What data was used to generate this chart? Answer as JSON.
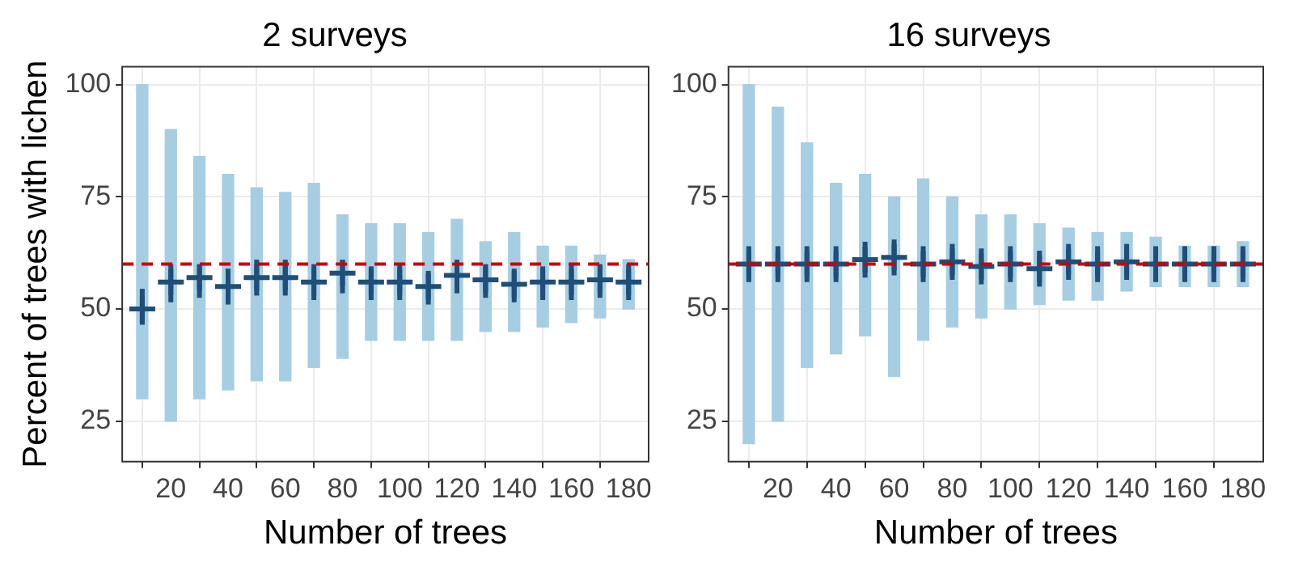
{
  "chart_data": [
    {
      "type": "scatter",
      "title": "2 surveys",
      "xlabel": "Number of trees",
      "ylabel": "Percent of trees with lichen",
      "x": [
        10,
        20,
        30,
        40,
        50,
        60,
        70,
        80,
        90,
        100,
        110,
        120,
        130,
        140,
        150,
        160,
        170,
        180
      ],
      "xlim": [
        3,
        187
      ],
      "xticks": [
        20,
        40,
        60,
        80,
        100,
        120,
        140,
        160,
        180
      ],
      "ylim": [
        16,
        104
      ],
      "yticks": [
        25,
        50,
        75,
        100
      ],
      "grid": true,
      "ref_lines": [
        {
          "axis": "y",
          "value": 60,
          "color": "#cc0000",
          "line_style": "dashed"
        }
      ],
      "series": [
        {
          "type": "bar",
          "color": "#a6cee3",
          "base": [
            30,
            25,
            30,
            32,
            34,
            34,
            37,
            39,
            43,
            43,
            43,
            43,
            45,
            45,
            46,
            47,
            48,
            50
          ],
          "values": [
            70,
            65,
            54,
            48,
            43,
            42,
            41,
            32,
            26,
            26,
            24,
            27,
            20,
            22,
            18,
            17,
            14,
            11
          ]
        },
        {
          "color": "#1f4e79",
          "marker": "cross",
          "values": [
            50,
            56,
            57,
            55,
            57,
            57,
            56,
            58,
            56,
            56,
            55,
            57.5,
            56.5,
            55.5,
            56,
            56,
            56.5,
            56
          ],
          "errors": [
            [
              46.5,
              54.5
            ],
            [
              51.5,
              60
            ],
            [
              52.5,
              60
            ],
            [
              51,
              59
            ],
            [
              53,
              61
            ],
            [
              53,
              61
            ],
            [
              52,
              60
            ],
            [
              53.5,
              61
            ],
            [
              52,
              59.5
            ],
            [
              52,
              60
            ],
            [
              51,
              58.5
            ],
            [
              53.5,
              61
            ],
            [
              52.5,
              60
            ],
            [
              51.5,
              59
            ],
            [
              52,
              59.5
            ],
            [
              52,
              60
            ],
            [
              52.5,
              60
            ],
            [
              52,
              60
            ]
          ]
        }
      ]
    },
    {
      "type": "scatter",
      "title": "16 surveys",
      "xlabel": "Number of trees",
      "x": [
        10,
        20,
        30,
        40,
        50,
        60,
        70,
        80,
        90,
        100,
        110,
        120,
        130,
        140,
        150,
        160,
        170,
        180
      ],
      "xlim": [
        3,
        187
      ],
      "xticks": [
        20,
        40,
        60,
        80,
        100,
        120,
        140,
        160,
        180
      ],
      "ylim": [
        16,
        104
      ],
      "yticks": [
        25,
        50,
        75,
        100
      ],
      "grid": true,
      "ref_lines": [
        {
          "axis": "y",
          "value": 60,
          "color": "#cc0000",
          "line_style": "dashed"
        }
      ],
      "series": [
        {
          "type": "bar",
          "color": "#a6cee3",
          "base": [
            20,
            25,
            37,
            40,
            44,
            35,
            43,
            46,
            48,
            50,
            51,
            52,
            52,
            54,
            55,
            55,
            55,
            55
          ],
          "values": [
            80,
            70,
            50,
            38,
            36,
            40,
            36,
            29,
            23,
            21,
            18,
            16,
            15,
            13,
            11,
            9,
            9,
            10
          ]
        },
        {
          "color": "#1f4e79",
          "marker": "cross",
          "values": [
            60,
            60,
            60,
            60,
            61,
            61.5,
            60,
            60.5,
            59.5,
            60,
            59,
            60.5,
            60,
            60.5,
            60,
            60,
            60,
            60
          ],
          "errors": [
            [
              56,
              64
            ],
            [
              56,
              64
            ],
            [
              56,
              64
            ],
            [
              56,
              64
            ],
            [
              57,
              65
            ],
            [
              57.5,
              65.5
            ],
            [
              56,
              64
            ],
            [
              56.5,
              64.5
            ],
            [
              55.5,
              63.5
            ],
            [
              56,
              64
            ],
            [
              55,
              63
            ],
            [
              56.5,
              64.5
            ],
            [
              56,
              64
            ],
            [
              56.5,
              64.5
            ],
            [
              56,
              64
            ],
            [
              56,
              64
            ],
            [
              56,
              64
            ],
            [
              56,
              64
            ]
          ]
        }
      ]
    }
  ]
}
